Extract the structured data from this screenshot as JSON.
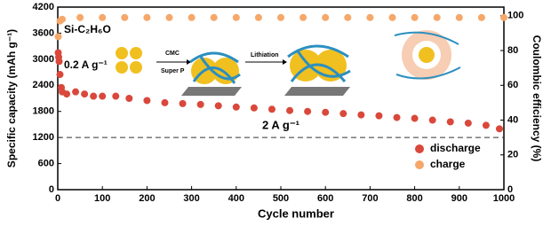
{
  "chart_data": {
    "type": "scatter",
    "x_label": "Cycle number",
    "y_label": "Specific capacity (mAh g⁻¹)",
    "y2_label": "Coulombic efficiency (%)",
    "xlim": [
      0,
      1000
    ],
    "xticks": [
      0,
      100,
      200,
      300,
      400,
      500,
      600,
      700,
      800,
      900,
      1000
    ],
    "ylim": [
      0,
      4200
    ],
    "yticks": [
      0,
      600,
      1200,
      1800,
      2400,
      3000,
      3600,
      4200
    ],
    "y2lim": [
      0,
      105
    ],
    "y2ticks": [
      0,
      20,
      40,
      60,
      80,
      100
    ],
    "reference_line": 1200,
    "legend": "lower right",
    "annotations": [
      "Si-C₂H₆O",
      "0.2 A g⁻¹",
      "2 A g⁻¹",
      "CMC",
      "Super P",
      "Lithiation"
    ],
    "series": [
      {
        "name": "discharge",
        "color": "#d9483b",
        "x": [
          1,
          2,
          3,
          5,
          8,
          10,
          20,
          40,
          60,
          80,
          100,
          130,
          160,
          200,
          240,
          280,
          320,
          360,
          400,
          440,
          480,
          520,
          560,
          600,
          640,
          680,
          720,
          760,
          800,
          840,
          880,
          920,
          960,
          990
        ],
        "values": [
          3150,
          3050,
          2950,
          2650,
          2350,
          2250,
          2200,
          2250,
          2200,
          2150,
          2150,
          2150,
          2100,
          2050,
          2000,
          1980,
          1960,
          1930,
          1900,
          1880,
          1850,
          1820,
          1800,
          1780,
          1750,
          1720,
          1700,
          1660,
          1640,
          1600,
          1560,
          1530,
          1480,
          1400
        ]
      },
      {
        "name": "charge",
        "color": "#f5a86a",
        "axis": "y2",
        "x": [
          1,
          5,
          10,
          50,
          100,
          150,
          200,
          250,
          300,
          350,
          400,
          450,
          500,
          550,
          600,
          650,
          700,
          750,
          800,
          850,
          900,
          950,
          1000
        ],
        "values": [
          88,
          97,
          98,
          99,
          99,
          99,
          99,
          99,
          99,
          99,
          99,
          99,
          99,
          99,
          99,
          99,
          99,
          99,
          99,
          99,
          99,
          99,
          99
        ]
      }
    ]
  }
}
